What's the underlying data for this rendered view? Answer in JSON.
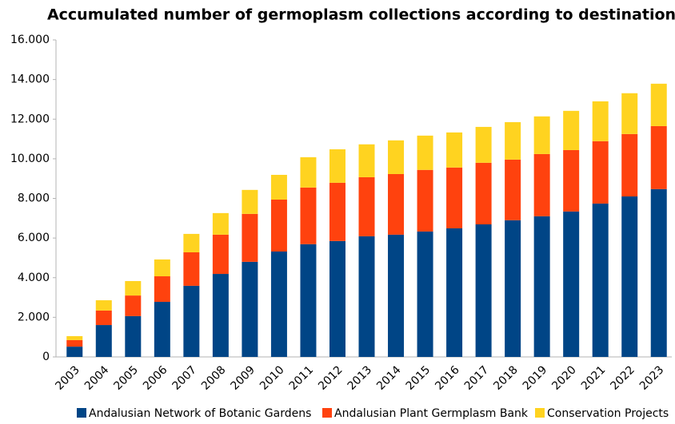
{
  "chart_data": {
    "type": "bar",
    "stacked": true,
    "title": "Accumulated number of germoplasm collections according to destination",
    "categories": [
      "2003",
      "2004",
      "2005",
      "2006",
      "2007",
      "2008",
      "2009",
      "2010",
      "2011",
      "2012",
      "2013",
      "2014",
      "2015",
      "2016",
      "2017",
      "2018",
      "2019",
      "2020",
      "2021",
      "2022",
      "2023"
    ],
    "series": [
      {
        "name": "Andalusian Network of Botanic Gardens",
        "color": "#004586",
        "values": [
          520,
          1610,
          2060,
          2780,
          3590,
          4190,
          4800,
          5320,
          5690,
          5850,
          6090,
          6170,
          6330,
          6490,
          6690,
          6900,
          7100,
          7340,
          7740,
          8100,
          8470
        ]
      },
      {
        "name": "Andalusian Plant Germplasm Bank",
        "color": "#ff420e",
        "values": [
          330,
          730,
          1040,
          1290,
          1690,
          1980,
          2420,
          2620,
          2860,
          2940,
          2980,
          3060,
          3110,
          3070,
          3110,
          3060,
          3140,
          3100,
          3150,
          3150,
          3180
        ]
      },
      {
        "name": "Conservation Projects",
        "color": "#ffd320",
        "values": [
          200,
          520,
          730,
          850,
          930,
          1090,
          1210,
          1250,
          1530,
          1690,
          1660,
          1700,
          1730,
          1770,
          1810,
          1890,
          1900,
          1980,
          2010,
          2060,
          2140
        ]
      }
    ],
    "ylim": [
      0,
      16000
    ],
    "yticks": [
      0,
      {
        "value": 2000,
        "label": "2.000"
      },
      {
        "value": 4000,
        "label": "4.000"
      },
      {
        "value": 6000,
        "label": "6.000"
      },
      {
        "value": 8000,
        "label": "8.000"
      },
      {
        "value": 10000,
        "label": "10.000"
      },
      {
        "value": 12000,
        "label": "12.000"
      },
      {
        "value": 14000,
        "label": "14.000"
      },
      {
        "value": 16000,
        "label": "16.000"
      }
    ],
    "grid": false,
    "legend": "bottom"
  }
}
